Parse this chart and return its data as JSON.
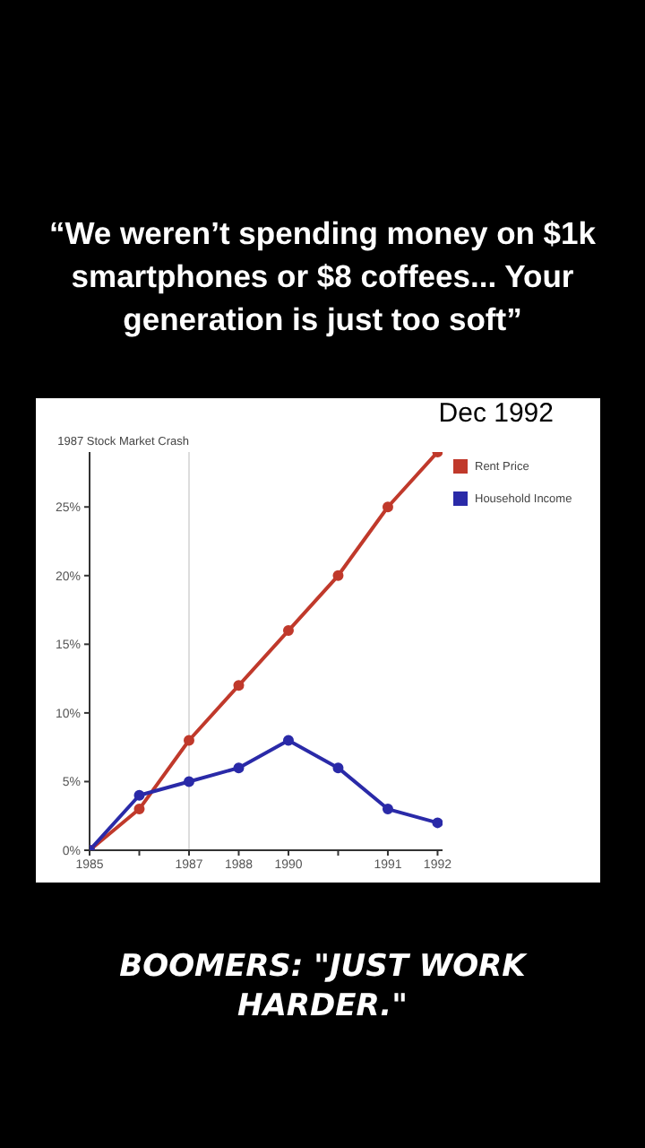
{
  "chart_data": {
    "type": "line",
    "title": "“We weren’t spending money on $1k smartphones or $8 coffees... Your generation is just too soft”",
    "subtitle": "Dec 1992",
    "annotations": [
      "BOOMERS: \"JUST WORK HARDER.\""
    ],
    "categories": [
      "1985",
      null,
      "1987",
      "1988",
      "1990",
      null,
      "1991",
      "1992"
    ],
    "series": [
      {
        "name": "Rent Price",
        "color": "#c0392b",
        "values": [
          0,
          3,
          8,
          12,
          16,
          20,
          25,
          29
        ]
      },
      {
        "name": "Household Income",
        "color": "#2a2aa8",
        "values": [
          0,
          4,
          5,
          6,
          8,
          6,
          3,
          2
        ]
      }
    ],
    "ylim": [
      0,
      29
    ],
    "yticks": [
      {
        "value": 0,
        "label": "0%"
      },
      {
        "value": 5,
        "label": "5%"
      },
      {
        "value": 10,
        "label": "10%"
      },
      {
        "value": 15,
        "label": "15%"
      },
      {
        "value": 20,
        "label": "20%"
      },
      {
        "value": 25,
        "label": "25%"
      }
    ],
    "ref_lines": [
      {
        "axis": "x",
        "value": "1987",
        "label": "1987 Stock Market Crash",
        "color": "#dddddd"
      }
    ],
    "legend": "top right",
    "grid": false,
    "marker": "circle",
    "line_style": "solid"
  }
}
